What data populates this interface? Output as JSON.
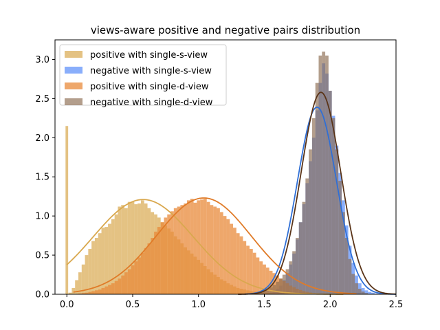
{
  "chart_data": {
    "type": "histogram",
    "title": "views-aware positive and negative pairs distribution",
    "xlabel": "",
    "ylabel": "",
    "xlim": [
      -0.09,
      2.5
    ],
    "ylim": [
      0,
      3.25
    ],
    "xticks": [
      0.0,
      0.5,
      1.0,
      1.5,
      2.0,
      2.5
    ],
    "xtick_labels": [
      "0.0",
      "0.5",
      "1.0",
      "1.5",
      "2.0",
      "2.5"
    ],
    "yticks": [
      0.0,
      0.5,
      1.0,
      1.5,
      2.0,
      2.5,
      3.0
    ],
    "ytick_labels": [
      "0.0",
      "0.5",
      "1.0",
      "1.5",
      "2.0",
      "2.5",
      "3.0"
    ],
    "grid": false,
    "legend_position": "top-left",
    "bin_width": 0.025,
    "series": [
      {
        "name": "positive with single-s-view",
        "color": "#d9a84e",
        "curve_color": "#d9a84e",
        "opacity": 0.7,
        "fit": {
          "mean": 0.58,
          "std": 0.38,
          "peak": 1.21,
          "x_start": 0.0,
          "x_end": 2.1
        },
        "spike": {
          "x": 0.0,
          "value": 2.15
        },
        "bins": [
          [
            0.025,
            0.02
          ],
          [
            0.05,
            0.08
          ],
          [
            0.075,
            0.18
          ],
          [
            0.1,
            0.28
          ],
          [
            0.125,
            0.38
          ],
          [
            0.15,
            0.5
          ],
          [
            0.175,
            0.58
          ],
          [
            0.2,
            0.68
          ],
          [
            0.225,
            0.72
          ],
          [
            0.25,
            0.78
          ],
          [
            0.275,
            0.85
          ],
          [
            0.3,
            0.86
          ],
          [
            0.325,
            0.9
          ],
          [
            0.35,
            0.96
          ],
          [
            0.375,
            1.02
          ],
          [
            0.4,
            1.12
          ],
          [
            0.425,
            1.14
          ],
          [
            0.45,
            1.1
          ],
          [
            0.475,
            1.18
          ],
          [
            0.5,
            1.18
          ],
          [
            0.525,
            1.15
          ],
          [
            0.55,
            1.16
          ],
          [
            0.575,
            1.2
          ],
          [
            0.6,
            1.16
          ],
          [
            0.625,
            1.1
          ],
          [
            0.65,
            1.05
          ],
          [
            0.675,
            1.02
          ],
          [
            0.7,
            0.98
          ],
          [
            0.725,
            0.92
          ],
          [
            0.75,
            0.88
          ],
          [
            0.775,
            0.84
          ],
          [
            0.8,
            0.8
          ],
          [
            0.825,
            0.74
          ],
          [
            0.85,
            0.7
          ],
          [
            0.875,
            0.65
          ],
          [
            0.9,
            0.6
          ],
          [
            0.925,
            0.56
          ],
          [
            0.95,
            0.52
          ],
          [
            0.975,
            0.48
          ],
          [
            1.0,
            0.44
          ],
          [
            1.025,
            0.4
          ],
          [
            1.05,
            0.36
          ],
          [
            1.075,
            0.32
          ],
          [
            1.1,
            0.28
          ],
          [
            1.125,
            0.25
          ],
          [
            1.15,
            0.22
          ],
          [
            1.175,
            0.19
          ],
          [
            1.2,
            0.17
          ],
          [
            1.225,
            0.14
          ],
          [
            1.25,
            0.12
          ],
          [
            1.275,
            0.1
          ],
          [
            1.3,
            0.08
          ],
          [
            1.325,
            0.07
          ],
          [
            1.35,
            0.06
          ],
          [
            1.375,
            0.05
          ],
          [
            1.4,
            0.04
          ],
          [
            1.425,
            0.035
          ],
          [
            1.45,
            0.03
          ],
          [
            1.475,
            0.025
          ],
          [
            1.5,
            0.02
          ],
          [
            1.525,
            0.015
          ],
          [
            1.55,
            0.012
          ],
          [
            1.575,
            0.01
          ],
          [
            1.6,
            0.008
          ],
          [
            1.625,
            0.006
          ],
          [
            1.65,
            0.005
          ],
          [
            1.675,
            0.004
          ],
          [
            1.7,
            0.003
          ]
        ]
      },
      {
        "name": "negative with single-s-view",
        "color": "#5b8ff9",
        "curve_color": "#2f6fd6",
        "opacity": 0.72,
        "fit": {
          "mean": 1.9,
          "std": 0.148,
          "peak": 2.39,
          "x_start": 1.35,
          "x_end": 2.5
        },
        "bins": [
          [
            1.55,
            0.02
          ],
          [
            1.575,
            0.04
          ],
          [
            1.6,
            0.07
          ],
          [
            1.625,
            0.11
          ],
          [
            1.65,
            0.18
          ],
          [
            1.675,
            0.27
          ],
          [
            1.7,
            0.38
          ],
          [
            1.725,
            0.52
          ],
          [
            1.75,
            0.7
          ],
          [
            1.775,
            0.92
          ],
          [
            1.8,
            1.15
          ],
          [
            1.825,
            1.42
          ],
          [
            1.85,
            1.7
          ],
          [
            1.875,
            2.0
          ],
          [
            1.9,
            2.35
          ],
          [
            1.925,
            2.7
          ],
          [
            1.95,
            2.95
          ],
          [
            1.975,
            2.82
          ],
          [
            2.0,
            2.6
          ],
          [
            2.025,
            2.28
          ],
          [
            2.05,
            1.9
          ],
          [
            2.075,
            1.55
          ],
          [
            2.1,
            1.2
          ],
          [
            2.125,
            0.88
          ],
          [
            2.15,
            0.62
          ],
          [
            2.175,
            0.4
          ],
          [
            2.2,
            0.24
          ],
          [
            2.225,
            0.14
          ],
          [
            2.25,
            0.08
          ],
          [
            2.275,
            0.05
          ],
          [
            2.3,
            0.03
          ],
          [
            2.325,
            0.02
          ],
          [
            2.35,
            0.01
          ],
          [
            2.375,
            0.005
          ]
        ]
      },
      {
        "name": "positive with single-d-view",
        "color": "#e8893a",
        "curve_color": "#e07b28",
        "opacity": 0.75,
        "fit": {
          "mean": 1.04,
          "std": 0.36,
          "peak": 1.23,
          "x_start": 0.05,
          "x_end": 2.2
        },
        "bins": [
          [
            0.1,
            0.01
          ],
          [
            0.125,
            0.015
          ],
          [
            0.15,
            0.02
          ],
          [
            0.175,
            0.03
          ],
          [
            0.2,
            0.04
          ],
          [
            0.225,
            0.05
          ],
          [
            0.25,
            0.06
          ],
          [
            0.275,
            0.08
          ],
          [
            0.3,
            0.1
          ],
          [
            0.325,
            0.12
          ],
          [
            0.35,
            0.14
          ],
          [
            0.375,
            0.17
          ],
          [
            0.4,
            0.2
          ],
          [
            0.425,
            0.24
          ],
          [
            0.45,
            0.28
          ],
          [
            0.475,
            0.32
          ],
          [
            0.5,
            0.37
          ],
          [
            0.525,
            0.42
          ],
          [
            0.55,
            0.47
          ],
          [
            0.575,
            0.53
          ],
          [
            0.6,
            0.59
          ],
          [
            0.625,
            0.65
          ],
          [
            0.65,
            0.72
          ],
          [
            0.675,
            0.8
          ],
          [
            0.7,
            0.86
          ],
          [
            0.725,
            0.92
          ],
          [
            0.75,
            0.98
          ],
          [
            0.775,
            1.02
          ],
          [
            0.8,
            1.06
          ],
          [
            0.825,
            1.1
          ],
          [
            0.85,
            1.12
          ],
          [
            0.875,
            1.14
          ],
          [
            0.9,
            1.16
          ],
          [
            0.925,
            1.2
          ],
          [
            0.95,
            1.22
          ],
          [
            0.975,
            1.17
          ],
          [
            1.0,
            1.2
          ],
          [
            1.025,
            1.21
          ],
          [
            1.05,
            1.22
          ],
          [
            1.075,
            1.18
          ],
          [
            1.1,
            1.14
          ],
          [
            1.125,
            1.12
          ],
          [
            1.15,
            1.1
          ],
          [
            1.175,
            1.05
          ],
          [
            1.2,
            1.0
          ],
          [
            1.225,
            0.96
          ],
          [
            1.25,
            0.9
          ],
          [
            1.275,
            0.85
          ],
          [
            1.3,
            0.78
          ],
          [
            1.325,
            0.74
          ],
          [
            1.35,
            0.68
          ],
          [
            1.375,
            0.62
          ],
          [
            1.4,
            0.58
          ],
          [
            1.425,
            0.53
          ],
          [
            1.45,
            0.47
          ],
          [
            1.475,
            0.42
          ],
          [
            1.5,
            0.38
          ],
          [
            1.525,
            0.34
          ],
          [
            1.55,
            0.3
          ],
          [
            1.575,
            0.27
          ],
          [
            1.6,
            0.24
          ],
          [
            1.625,
            0.2
          ],
          [
            1.65,
            0.17
          ],
          [
            1.675,
            0.14
          ],
          [
            1.7,
            0.11
          ],
          [
            1.725,
            0.09
          ],
          [
            1.75,
            0.07
          ],
          [
            1.775,
            0.055
          ],
          [
            1.8,
            0.04
          ],
          [
            1.825,
            0.03
          ],
          [
            1.85,
            0.022
          ],
          [
            1.875,
            0.015
          ],
          [
            1.9,
            0.01
          ],
          [
            1.925,
            0.007
          ],
          [
            1.95,
            0.005
          ]
        ]
      },
      {
        "name": "negative with single-d-view",
        "color": "#8b6a4f",
        "curve_color": "#5a3418",
        "opacity": 0.65,
        "fit": {
          "mean": 1.93,
          "std": 0.15,
          "peak": 2.58,
          "x_start": 1.3,
          "x_end": 2.5
        },
        "bins": [
          [
            1.45,
            0.02
          ],
          [
            1.475,
            0.03
          ],
          [
            1.5,
            0.05
          ],
          [
            1.525,
            0.07
          ],
          [
            1.55,
            0.09
          ],
          [
            1.575,
            0.12
          ],
          [
            1.6,
            0.16
          ],
          [
            1.625,
            0.2
          ],
          [
            1.65,
            0.25
          ],
          [
            1.675,
            0.32
          ],
          [
            1.7,
            0.42
          ],
          [
            1.725,
            0.55
          ],
          [
            1.75,
            0.72
          ],
          [
            1.775,
            0.92
          ],
          [
            1.8,
            1.18
          ],
          [
            1.825,
            1.48
          ],
          [
            1.85,
            1.85
          ],
          [
            1.875,
            2.25
          ],
          [
            1.9,
            2.7
          ],
          [
            1.925,
            3.05
          ],
          [
            1.95,
            3.1
          ],
          [
            1.975,
            3.05
          ],
          [
            2.0,
            2.6
          ],
          [
            2.025,
            2.25
          ],
          [
            2.05,
            1.85
          ],
          [
            2.075,
            1.45
          ],
          [
            2.1,
            1.05
          ],
          [
            2.125,
            0.72
          ],
          [
            2.15,
            0.45
          ],
          [
            2.175,
            0.26
          ],
          [
            2.2,
            0.14
          ],
          [
            2.225,
            0.07
          ],
          [
            2.25,
            0.035
          ],
          [
            2.275,
            0.015
          ]
        ]
      }
    ]
  }
}
